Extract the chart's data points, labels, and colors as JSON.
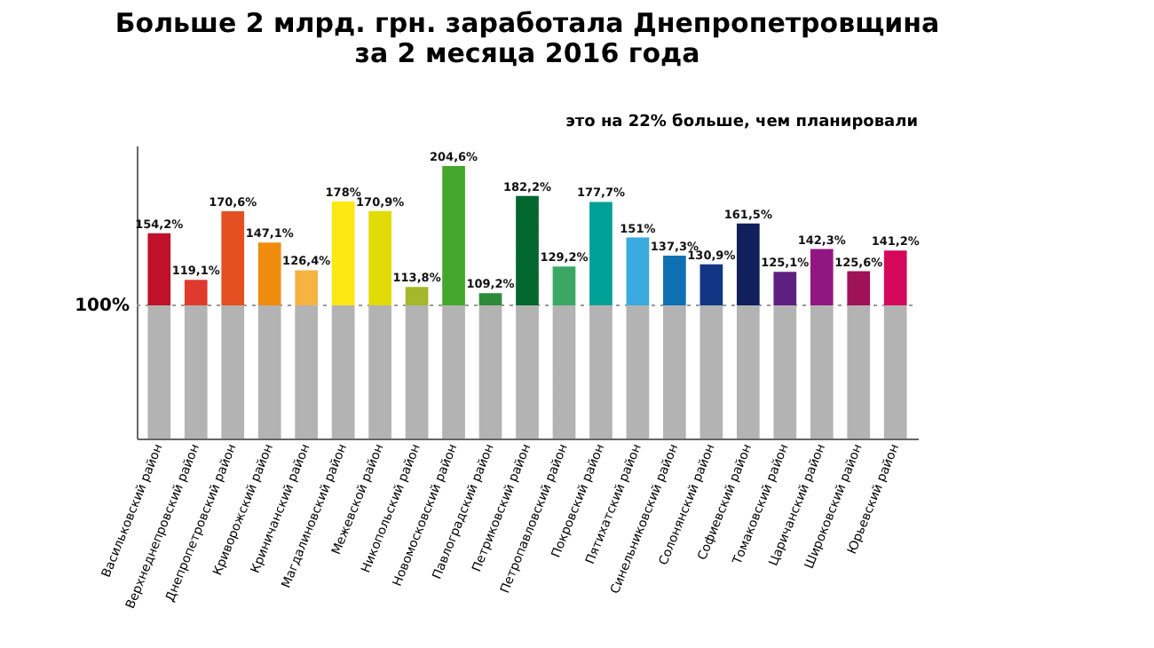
{
  "chart_data": {
    "type": "bar",
    "title": [
      "Больше 2 млрд. грн. заработала Днепропетровщина",
      "за 2 месяца 2016 года"
    ],
    "subtitle": "это на 22% больше, чем планировали",
    "categories": [
      "Васильковский район",
      "Верхнеднепровский район",
      "Днепропетровский район",
      "Криворожский район",
      "Криничанский район",
      "Магдалиновский район",
      "Межевской район",
      "Никопольский район",
      "Новомосковский район",
      "Павлоградский район",
      "Петриковский район",
      "Петропавловский район",
      "Покровский район",
      "Пятихатский район",
      "Синельниковский район",
      "Солонянский район",
      "Софиевский район",
      "Томаковский район",
      "Царичанский район",
      "Широковский район",
      "Юрьевский район"
    ],
    "series": [
      {
        "color": "#b3b3b3",
        "colors": [
          "#c0112a",
          "#e03a2f",
          "#e45022",
          "#ef8c0e",
          "#f5b342",
          "#fde814",
          "#e1dc08",
          "#a3b82a",
          "#45a62e",
          "#2d8a3a",
          "#02662f",
          "#3aa765",
          "#00a096",
          "#3aaadf",
          "#0f6fb3",
          "#123584",
          "#111f5a",
          "#5e2080",
          "#921681",
          "#a01257",
          "#d5075a"
        ],
        "values": [
          154.2,
          119.1,
          170.6,
          147.1,
          126.4,
          178,
          170.9,
          113.8,
          204.6,
          109.2,
          182.2,
          129.2,
          177.7,
          151,
          137.3,
          130.9,
          161.5,
          125.1,
          142.3,
          125.6,
          141.2
        ],
        "value_labels": [
          "154,2%",
          "119,1%",
          "170,6%",
          "147,1%",
          "126,4%",
          "178%",
          "170,9%",
          "113,8%",
          "204,6%",
          "109,2%",
          "182,2%",
          "129,2%",
          "177,7%",
          "151%",
          "137,3%",
          "130,9%",
          "161,5%",
          "125,1%",
          "142,3%",
          "125,6%",
          "141,2%"
        ]
      }
    ],
    "ylim": [
      0,
      220
    ],
    "ref_lines": [
      {
        "axis": "y",
        "value": 100,
        "label": "100%",
        "color": "#999999",
        "line_style": "dotted"
      }
    ],
    "tick_labels": "x",
    "grid": false
  }
}
